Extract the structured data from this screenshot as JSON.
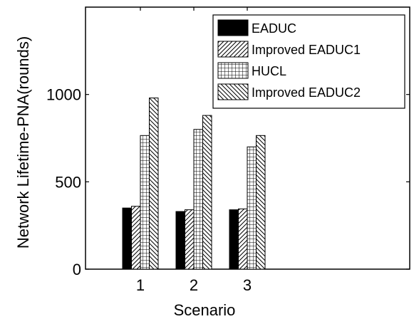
{
  "chart_data": {
    "type": "bar",
    "title": "",
    "xlabel": "Scenario",
    "ylabel": "Network Lifetime-PNA(rounds)",
    "categories": [
      "1",
      "2",
      "3"
    ],
    "series": [
      {
        "name": "EADUC",
        "values": [
          350,
          330,
          340
        ],
        "pattern": "solid"
      },
      {
        "name": "Improved EADUC1",
        "values": [
          360,
          340,
          345
        ],
        "pattern": "diagonal-forward"
      },
      {
        "name": "HUCL",
        "values": [
          765,
          800,
          700
        ],
        "pattern": "grid"
      },
      {
        "name": "Improved EADUC2",
        "values": [
          980,
          880,
          765
        ],
        "pattern": "diagonal-back"
      }
    ],
    "ylim": [
      0,
      1500
    ],
    "yticks": [
      0,
      500,
      1000
    ],
    "xticks": [
      "1",
      "2",
      "3"
    ],
    "grid": false,
    "legend_position": "top-right"
  }
}
